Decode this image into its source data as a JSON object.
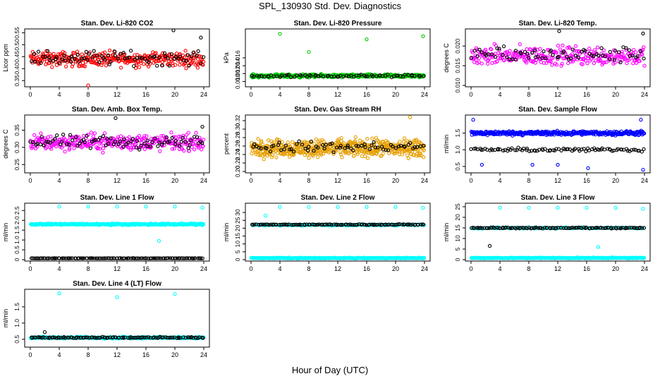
{
  "figure": {
    "title": "SPL_130930  Std. Dev. Diagnostics",
    "xlabel": "Hour of Day (UTC)",
    "x_ticks": [
      0,
      4,
      8,
      12,
      16,
      20,
      24
    ]
  },
  "chart_data": [
    {
      "type": "scatter",
      "title": "Stan. Dev. Li-820 CO2",
      "ylabel": "Licor ppm",
      "xlim": [
        0,
        24
      ],
      "ylim": [
        0.33,
        0.56
      ],
      "y_ticks": [
        0.35,
        0.4,
        0.45,
        0.5,
        0.55
      ],
      "y_tick_labels": [
        "0.35",
        "0.40",
        "0.45",
        "0.50",
        "0.55"
      ],
      "series": [
        {
          "color": "#ff0000",
          "pattern": {
            "count": 320,
            "base": 0.44,
            "amp": 0.045
          }
        },
        {
          "color": "#000000",
          "pattern": {
            "count": 80,
            "base": 0.445,
            "amp": 0.045
          }
        }
      ],
      "outliers": [
        {
          "x": 8.0,
          "y": 0.33,
          "color": "#ff0000"
        },
        {
          "x": 19.8,
          "y": 0.56,
          "color": "#000000"
        },
        {
          "x": 23.6,
          "y": 0.53,
          "color": "#000000"
        }
      ]
    },
    {
      "type": "scatter",
      "title": "Stan. Dev. Li-820 Pressure",
      "ylabel": "kPa",
      "xlim": [
        0,
        24
      ],
      "ylim": [
        0.009,
        0.023
      ],
      "y_ticks": [
        0.01,
        0.012,
        0.014,
        0.016
      ],
      "y_tick_labels": [
        "0.010",
        "0.012",
        "0.014",
        "0.016"
      ],
      "series": [
        {
          "color": "#00cc00",
          "pattern": {
            "count": 360,
            "base": 0.0114,
            "amp": 0.0006
          }
        },
        {
          "color": "#000000",
          "pattern": {
            "count": 70,
            "base": 0.0114,
            "amp": 0.0005
          }
        }
      ],
      "outliers": [
        {
          "x": 4.0,
          "y": 0.0221,
          "color": "#00cc00"
        },
        {
          "x": 8.0,
          "y": 0.0175,
          "color": "#00cc00"
        },
        {
          "x": 16.0,
          "y": 0.0207,
          "color": "#00cc00"
        },
        {
          "x": 23.8,
          "y": 0.0215,
          "color": "#00cc00"
        }
      ]
    },
    {
      "type": "scatter",
      "title": "Stan. Dev. Li-820 Temp.",
      "ylabel": "degrees C",
      "xlim": [
        0,
        24
      ],
      "ylim": [
        0.01,
        0.024
      ],
      "y_ticks": [
        0.01,
        0.015,
        0.02
      ],
      "y_tick_labels": [
        "0.010",
        "0.015",
        "0.020"
      ],
      "series": [
        {
          "color": "#ff00ff",
          "pattern": {
            "count": 300,
            "base": 0.0175,
            "amp": 0.0035
          }
        },
        {
          "color": "#000000",
          "pattern": {
            "count": 70,
            "base": 0.0178,
            "amp": 0.003
          }
        }
      ],
      "outliers": [
        {
          "x": 12.2,
          "y": 0.0238,
          "color": "#000000"
        },
        {
          "x": 23.8,
          "y": 0.0232,
          "color": "#000000"
        }
      ]
    },
    {
      "type": "scatter",
      "title": "Stan. Dev. Amb. Box Temp.",
      "ylabel": "degrees C",
      "xlim": [
        0,
        24
      ],
      "ylim": [
        0.23,
        0.39
      ],
      "y_ticks": [
        0.25,
        0.3,
        0.35
      ],
      "y_tick_labels": [
        "0.25",
        "0.30",
        "0.35"
      ],
      "series": [
        {
          "color": "#ff00ff",
          "pattern": {
            "count": 320,
            "base": 0.315,
            "amp": 0.035
          }
        },
        {
          "color": "#000000",
          "pattern": {
            "count": 80,
            "base": 0.315,
            "amp": 0.03
          }
        }
      ],
      "outliers": [
        {
          "x": 11.8,
          "y": 0.385,
          "color": "#000000"
        },
        {
          "x": 23.8,
          "y": 0.36,
          "color": "#000000"
        }
      ]
    },
    {
      "type": "scatter",
      "title": "Stan. Dev. Gas Stream RH",
      "ylabel": "percent",
      "xlim": [
        0,
        24
      ],
      "ylim": [
        0.2,
        0.33
      ],
      "y_ticks": [
        0.2,
        0.22,
        0.24,
        0.26,
        0.28,
        0.3,
        0.32
      ],
      "y_tick_labels": [
        "0.20",
        "0.22",
        "0.24",
        "0.26",
        "0.28",
        "0.30",
        "0.32"
      ],
      "series": [
        {
          "color": "#e69f00",
          "pattern": {
            "count": 520,
            "base": 0.255,
            "amp": 0.03
          }
        },
        {
          "color": "#000000",
          "pattern": {
            "count": 70,
            "base": 0.258,
            "amp": 0.018
          }
        }
      ],
      "outliers": [
        {
          "x": 22.0,
          "y": 0.328,
          "color": "#e69f00"
        }
      ]
    },
    {
      "type": "scatter",
      "title": "Stan. Dev. Sample Flow",
      "ylabel": "ml/min",
      "xlim": [
        0,
        24
      ],
      "ylim": [
        0.35,
        2.0
      ],
      "y_ticks": [
        0.5,
        1.0,
        1.5
      ],
      "y_tick_labels": [
        "0.5",
        "1.0",
        "1.5"
      ],
      "series": [
        {
          "color": "#0000ff",
          "pattern": {
            "count": 380,
            "base": 1.5,
            "amp": 0.09
          }
        },
        {
          "color": "#000000",
          "pattern": {
            "count": 90,
            "base": 1.0,
            "amp": 0.08
          }
        }
      ],
      "outliers": [
        {
          "x": 0.3,
          "y": 1.9,
          "color": "#0000ff"
        },
        {
          "x": 1.5,
          "y": 0.55,
          "color": "#0000ff"
        },
        {
          "x": 8.5,
          "y": 0.55,
          "color": "#0000ff"
        },
        {
          "x": 12.0,
          "y": 0.55,
          "color": "#0000ff"
        },
        {
          "x": 16.2,
          "y": 0.45,
          "color": "#0000ff"
        },
        {
          "x": 23.8,
          "y": 0.4,
          "color": "#0000ff"
        },
        {
          "x": 23.5,
          "y": 1.9,
          "color": "#0000ff"
        }
      ]
    },
    {
      "type": "scatter",
      "title": "Stan. Dev. Line 1 Flow",
      "ylabel": "ml/min",
      "xlim": [
        0,
        24
      ],
      "ylim": [
        0,
        2.8
      ],
      "y_ticks": [
        0,
        0.5,
        1.0,
        1.5,
        2.0,
        2.5
      ],
      "y_tick_labels": [
        "0",
        "0.5",
        "1.0",
        "1.5",
        "2.0",
        "2.5"
      ],
      "series": [
        {
          "color": "#00ffff",
          "pattern": {
            "count": 300,
            "base": 1.8,
            "amp": 0.06
          }
        },
        {
          "color": "#000000",
          "pattern": {
            "count": 120,
            "base": 0.07,
            "amp": 0.01
          }
        }
      ],
      "outliers": [
        {
          "x": 4.0,
          "y": 2.7,
          "color": "#00ffff"
        },
        {
          "x": 8.0,
          "y": 2.7,
          "color": "#00ffff"
        },
        {
          "x": 12.0,
          "y": 2.7,
          "color": "#00ffff"
        },
        {
          "x": 16.0,
          "y": 2.7,
          "color": "#00ffff"
        },
        {
          "x": 20.0,
          "y": 2.7,
          "color": "#00ffff"
        },
        {
          "x": 23.8,
          "y": 2.65,
          "color": "#00ffff"
        },
        {
          "x": 17.8,
          "y": 0.95,
          "color": "#00ffff"
        }
      ]
    },
    {
      "type": "scatter",
      "title": "Stan. Dev. Line 2 Flow",
      "ylabel": "ml/min",
      "xlim": [
        0,
        24
      ],
      "ylim": [
        0,
        35
      ],
      "y_ticks": [
        0,
        5,
        10,
        15,
        20,
        25,
        30
      ],
      "y_tick_labels": [
        "0",
        "5",
        "10",
        "15",
        "20",
        "25",
        "30"
      ],
      "series": [
        {
          "color": "#00ffff",
          "pattern": {
            "count": 300,
            "base": 1.0,
            "amp": 0.4
          }
        },
        {
          "color": "#00ffff",
          "pattern": {
            "count": 120,
            "base": 22.0,
            "amp": 0.6
          }
        },
        {
          "color": "#000000",
          "pattern": {
            "count": 110,
            "base": 22.3,
            "amp": 0.4
          }
        }
      ],
      "outliers": [
        {
          "x": 2.0,
          "y": 28.0,
          "color": "#00ffff"
        },
        {
          "x": 4.0,
          "y": 33.5,
          "color": "#00ffff"
        },
        {
          "x": 8.0,
          "y": 33.5,
          "color": "#00ffff"
        },
        {
          "x": 12.0,
          "y": 33.5,
          "color": "#00ffff"
        },
        {
          "x": 16.0,
          "y": 33.5,
          "color": "#00ffff"
        },
        {
          "x": 20.0,
          "y": 33.5,
          "color": "#00ffff"
        },
        {
          "x": 23.8,
          "y": 33.0,
          "color": "#00ffff"
        }
      ]
    },
    {
      "type": "scatter",
      "title": "Stan. Dev. Line 3 Flow",
      "ylabel": "ml/min",
      "xlim": [
        0,
        24
      ],
      "ylim": [
        0,
        26
      ],
      "y_ticks": [
        0,
        5,
        10,
        15,
        20,
        25
      ],
      "y_tick_labels": [
        "0",
        "5",
        "10",
        "15",
        "20",
        "25"
      ],
      "series": [
        {
          "color": "#00ffff",
          "pattern": {
            "count": 300,
            "base": 0.8,
            "amp": 0.3
          }
        },
        {
          "color": "#00ffff",
          "pattern": {
            "count": 110,
            "base": 15.0,
            "amp": 0.5
          }
        },
        {
          "color": "#000000",
          "pattern": {
            "count": 110,
            "base": 15.0,
            "amp": 0.4
          }
        }
      ],
      "outliers": [
        {
          "x": 2.6,
          "y": 6.5,
          "color": "#000000"
        },
        {
          "x": 17.6,
          "y": 6.0,
          "color": "#00ffff"
        },
        {
          "x": 4.0,
          "y": 24.5,
          "color": "#00ffff"
        },
        {
          "x": 8.0,
          "y": 24.5,
          "color": "#00ffff"
        },
        {
          "x": 12.0,
          "y": 24.5,
          "color": "#00ffff"
        },
        {
          "x": 16.0,
          "y": 24.5,
          "color": "#00ffff"
        },
        {
          "x": 20.0,
          "y": 24.5,
          "color": "#00ffff"
        },
        {
          "x": 23.8,
          "y": 24.0,
          "color": "#00ffff"
        }
      ]
    },
    {
      "type": "scatter",
      "title": "Stan. Dev. Line 4 (LT) Flow",
      "ylabel": "ml/min",
      "xlim": [
        0,
        24
      ],
      "ylim": [
        0.3,
        2.0
      ],
      "y_ticks": [
        0.5,
        1.0,
        1.5
      ],
      "y_tick_labels": [
        "0.5",
        "1.0",
        "1.5"
      ],
      "series": [
        {
          "color": "#00ffff",
          "pattern": {
            "count": 300,
            "base": 0.55,
            "amp": 0.04
          }
        },
        {
          "color": "#000000",
          "pattern": {
            "count": 110,
            "base": 0.55,
            "amp": 0.03
          }
        }
      ],
      "outliers": [
        {
          "x": 4.0,
          "y": 1.92,
          "color": "#00ffff"
        },
        {
          "x": 12.0,
          "y": 1.8,
          "color": "#00ffff"
        },
        {
          "x": 20.0,
          "y": 1.9,
          "color": "#00ffff"
        },
        {
          "x": 2.0,
          "y": 0.72,
          "color": "#000000"
        }
      ]
    }
  ]
}
